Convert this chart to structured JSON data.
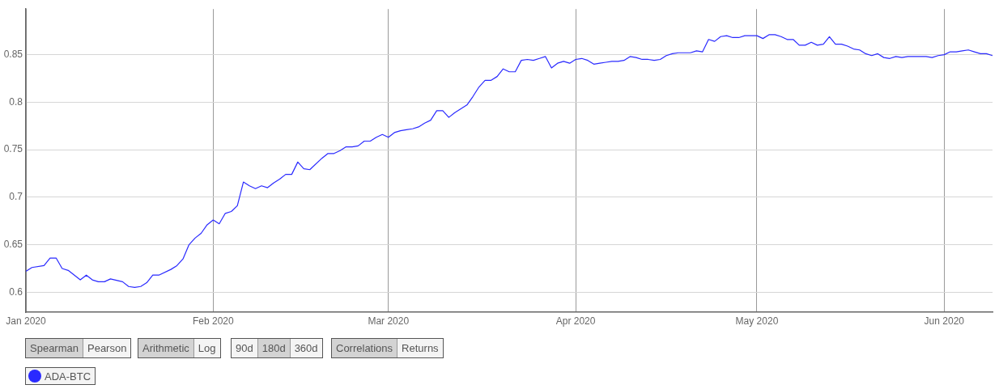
{
  "chart_data": {
    "type": "line",
    "x": [
      "2020-01-01",
      "2020-01-02",
      "2020-01-04",
      "2020-01-05",
      "2020-01-06",
      "2020-01-07",
      "2020-01-08",
      "2020-01-10",
      "2020-01-11",
      "2020-01-12",
      "2020-01-13",
      "2020-01-14",
      "2020-01-15",
      "2020-01-17",
      "2020-01-18",
      "2020-01-19",
      "2020-01-20",
      "2020-01-21",
      "2020-01-22",
      "2020-01-23",
      "2020-01-25",
      "2020-01-26",
      "2020-01-27",
      "2020-01-28",
      "2020-01-29",
      "2020-01-30",
      "2020-01-31",
      "2020-02-01",
      "2020-02-02",
      "2020-02-03",
      "2020-02-04",
      "2020-02-05",
      "2020-02-06",
      "2020-02-07",
      "2020-02-08",
      "2020-02-09",
      "2020-02-10",
      "2020-02-11",
      "2020-02-12",
      "2020-02-13",
      "2020-02-14",
      "2020-02-15",
      "2020-02-16",
      "2020-02-17",
      "2020-02-19",
      "2020-02-20",
      "2020-02-21",
      "2020-02-22",
      "2020-02-23",
      "2020-02-24",
      "2020-02-25",
      "2020-02-26",
      "2020-02-27",
      "2020-02-28",
      "2020-02-29",
      "2020-03-01",
      "2020-03-02",
      "2020-03-03",
      "2020-03-04",
      "2020-03-05",
      "2020-03-06",
      "2020-03-07",
      "2020-03-08",
      "2020-03-09",
      "2020-03-10",
      "2020-03-11",
      "2020-03-12",
      "2020-03-13",
      "2020-03-14",
      "2020-03-15",
      "2020-03-16",
      "2020-03-17",
      "2020-03-18",
      "2020-03-19",
      "2020-03-20",
      "2020-03-21",
      "2020-03-22",
      "2020-03-23",
      "2020-03-24",
      "2020-03-25",
      "2020-03-26",
      "2020-03-27",
      "2020-03-28",
      "2020-03-29",
      "2020-03-30",
      "2020-03-31",
      "2020-04-01",
      "2020-04-02",
      "2020-04-03",
      "2020-04-04",
      "2020-04-05",
      "2020-04-06",
      "2020-04-07",
      "2020-04-08",
      "2020-04-09",
      "2020-04-10",
      "2020-04-11",
      "2020-04-12",
      "2020-04-13",
      "2020-04-14",
      "2020-04-15",
      "2020-04-16",
      "2020-04-17",
      "2020-04-18",
      "2020-04-19",
      "2020-04-20",
      "2020-04-21",
      "2020-04-22",
      "2020-04-23",
      "2020-04-24",
      "2020-04-25",
      "2020-04-26",
      "2020-04-27",
      "2020-04-28",
      "2020-04-29",
      "2020-04-30",
      "2020-05-01",
      "2020-05-02",
      "2020-05-03",
      "2020-05-04",
      "2020-05-05",
      "2020-05-06",
      "2020-05-07",
      "2020-05-08",
      "2020-05-09",
      "2020-05-10",
      "2020-05-11",
      "2020-05-12",
      "2020-05-13",
      "2020-05-14",
      "2020-05-15",
      "2020-05-16",
      "2020-05-17",
      "2020-05-18",
      "2020-05-19",
      "2020-05-20",
      "2020-05-21",
      "2020-05-22",
      "2020-05-23",
      "2020-05-24",
      "2020-05-25",
      "2020-05-26",
      "2020-05-27",
      "2020-05-28",
      "2020-05-29",
      "2020-05-30",
      "2020-05-31",
      "2020-06-01",
      "2020-06-02",
      "2020-06-03",
      "2020-06-04",
      "2020-06-05",
      "2020-06-06",
      "2020-06-07",
      "2020-06-08",
      "2020-06-09"
    ],
    "series": [
      {
        "name": "ADA-BTC",
        "color": "#2a2aff",
        "values": [
          0.622,
          0.626,
          0.628,
          0.636,
          0.636,
          0.625,
          0.623,
          0.613,
          0.618,
          0.613,
          0.611,
          0.611,
          0.614,
          0.611,
          0.606,
          0.605,
          0.606,
          0.61,
          0.618,
          0.618,
          0.624,
          0.628,
          0.635,
          0.65,
          0.657,
          0.662,
          0.671,
          0.676,
          0.672,
          0.683,
          0.685,
          0.691,
          0.716,
          0.712,
          0.709,
          0.712,
          0.71,
          0.715,
          0.719,
          0.724,
          0.724,
          0.737,
          0.73,
          0.729,
          0.741,
          0.746,
          0.746,
          0.749,
          0.753,
          0.753,
          0.754,
          0.759,
          0.759,
          0.763,
          0.766,
          0.763,
          0.768,
          0.77,
          0.771,
          0.772,
          0.774,
          0.778,
          0.781,
          0.791,
          0.791,
          0.784,
          0.789,
          0.793,
          0.797,
          0.806,
          0.816,
          0.823,
          0.823,
          0.827,
          0.835,
          0.832,
          0.832,
          0.844,
          0.845,
          0.844,
          0.846,
          0.848,
          0.836,
          0.841,
          0.843,
          0.841,
          0.845,
          0.846,
          0.844,
          0.84,
          0.841,
          0.842,
          0.843,
          0.843,
          0.844,
          0.848,
          0.847,
          0.845,
          0.845,
          0.844,
          0.845,
          0.849,
          0.851,
          0.852,
          0.852,
          0.852,
          0.854,
          0.853,
          0.866,
          0.864,
          0.869,
          0.87,
          0.868,
          0.868,
          0.87,
          0.87,
          0.87,
          0.867,
          0.871,
          0.871,
          0.869,
          0.866,
          0.866,
          0.86,
          0.86,
          0.863,
          0.86,
          0.861,
          0.869,
          0.861,
          0.861,
          0.859,
          0.856,
          0.855,
          0.851,
          0.849,
          0.851,
          0.847,
          0.846,
          0.848,
          0.847,
          0.848,
          0.848,
          0.848,
          0.848,
          0.847,
          0.849,
          0.85,
          0.853,
          0.853,
          0.854,
          0.855,
          0.853,
          0.851,
          0.851,
          0.849
        ]
      }
    ],
    "xlim": [
      "2020-01-01",
      "2020-06-09"
    ],
    "xticks": [
      {
        "value": "2020-01-01",
        "label": "Jan 2020"
      },
      {
        "value": "2020-02-01",
        "label": "Feb 2020"
      },
      {
        "value": "2020-03-01",
        "label": "Mar 2020"
      },
      {
        "value": "2020-04-01",
        "label": "Apr 2020"
      },
      {
        "value": "2020-05-01",
        "label": "May 2020"
      },
      {
        "value": "2020-06-01",
        "label": "Jun 2020"
      }
    ],
    "ylim": [
      0.579,
      0.898
    ],
    "yticks": [
      0.6,
      0.65,
      0.7,
      0.75,
      0.8,
      0.85
    ],
    "grid": true,
    "legend": "bottom left",
    "marker": "none",
    "line_style": "solid",
    "annotations": [
      "Spearman",
      "Pearson",
      "Arithmetic",
      "Log",
      "90d",
      "180d",
      "360d",
      "Correlations",
      "Returns"
    ]
  }
}
